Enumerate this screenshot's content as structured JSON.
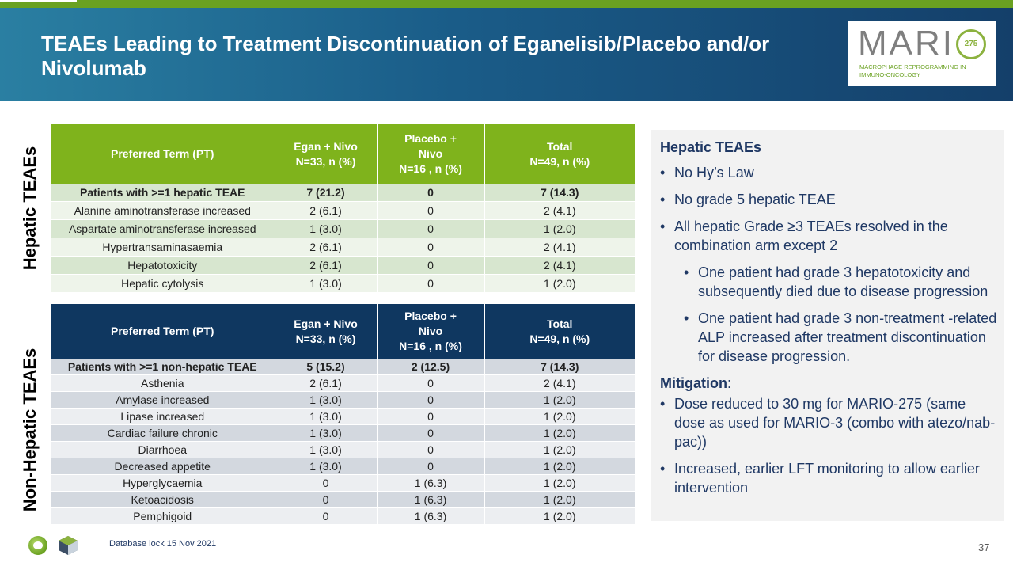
{
  "title": "TEAEs Leading to Treatment Discontinuation of Eganelisib/Placebo and/or Nivolumab",
  "logo": {
    "word": "MARI",
    "o_text": "275",
    "subtitle": "MACROPHAGE REPROGRAMMING IN IMMUNO-ONCOLOGY"
  },
  "labels": {
    "hepatic": "Hepatic TEAEs",
    "nonhepatic": "Non-Hepatic TEAEs"
  },
  "table_headers": {
    "pt": "Preferred Term (PT)",
    "egan_1": "Egan + Nivo",
    "egan_2": "N=33, n (%)",
    "placebo_1": "Placebo +",
    "placebo_2": "Nivo",
    "placebo_3": "N=16 , n (%)",
    "total_1": "Total",
    "total_2": "N=49, n (%)"
  },
  "hepatic_rows": [
    {
      "pt": "Patients with >=1 hepatic TEAE",
      "egan": "7 (21.2)",
      "placebo": "0",
      "total": "7 (14.3)"
    },
    {
      "pt": "Alanine aminotransferase increased",
      "egan": "2 (6.1)",
      "placebo": "0",
      "total": "2 (4.1)"
    },
    {
      "pt": "Aspartate aminotransferase increased",
      "egan": "1 (3.0)",
      "placebo": "0",
      "total": "1 (2.0)"
    },
    {
      "pt": "Hypertransaminasaemia",
      "egan": "2 (6.1)",
      "placebo": "0",
      "total": "2 (4.1)"
    },
    {
      "pt": "Hepatotoxicity",
      "egan": "2 (6.1)",
      "placebo": "0",
      "total": "2 (4.1)"
    },
    {
      "pt": "Hepatic cytolysis",
      "egan": "1 (3.0)",
      "placebo": "0",
      "total": "1 (2.0)"
    }
  ],
  "nonhepatic_rows": [
    {
      "pt": "Patients with >=1 non-hepatic TEAE",
      "egan": "5 (15.2)",
      "placebo": "2 (12.5)",
      "total": "7 (14.3)"
    },
    {
      "pt": "Asthenia",
      "egan": "2 (6.1)",
      "placebo": "0",
      "total": "2 (4.1)"
    },
    {
      "pt": "Amylase increased",
      "egan": "1 (3.0)",
      "placebo": "0",
      "total": "1 (2.0)"
    },
    {
      "pt": "Lipase increased",
      "egan": "1 (3.0)",
      "placebo": "0",
      "total": "1 (2.0)"
    },
    {
      "pt": "Cardiac failure chronic",
      "egan": "1 (3.0)",
      "placebo": "0",
      "total": "1 (2.0)"
    },
    {
      "pt": "Diarrhoea",
      "egan": "1 (3.0)",
      "placebo": "0",
      "total": "1 (2.0)"
    },
    {
      "pt": "Decreased appetite",
      "egan": "1 (3.0)",
      "placebo": "0",
      "total": "1 (2.0)"
    },
    {
      "pt": "Hyperglycaemia",
      "egan": "0",
      "placebo": "1 (6.3)",
      "total": "1 (2.0)"
    },
    {
      "pt": "Ketoacidosis",
      "egan": "0",
      "placebo": "1 (6.3)",
      "total": "1 (2.0)"
    },
    {
      "pt": "Pemphigoid",
      "egan": "0",
      "placebo": "1 (6.3)",
      "total": "1 (2.0)"
    }
  ],
  "side": {
    "heading": "Hepatic TEAEs",
    "b1": "No Hy’s Law",
    "b2": "No grade 5 hepatic TEAE",
    "b3": "All hepatic Grade ≥3 TEAEs resolved in the combination arm except 2",
    "s1": "One patient had grade 3 hepatotoxicity and subsequently died due to disease progression",
    "s2": "One patient had grade 3 non-treatment -related ALP increased after treatment discontinuation for disease progression.",
    "mitigation": "Mitigation",
    "mitigation_colon": ":",
    "m1": "Dose reduced to 30 mg for MARIO-275 (same dose as used for MARIO-3 (combo with atezo/nab-pac))",
    "m2": "Increased, earlier LFT monitoring to allow earlier intervention"
  },
  "footer": {
    "note": "Database lock 15 Nov 2021",
    "page": "37"
  }
}
